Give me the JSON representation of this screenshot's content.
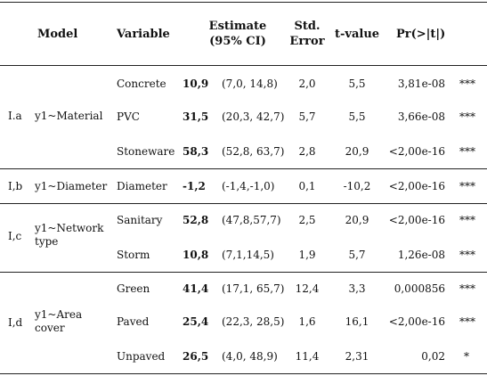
{
  "header": {
    "model": "Model",
    "variable": "Variable",
    "estimate_l1": "Estimate",
    "estimate_l2": "(95% CI)",
    "stderr_l1": "Std.",
    "stderr_l2": "Error",
    "tvalue": "t-value",
    "pr": "Pr(>|t|)"
  },
  "groups": [
    {
      "id": "I.a",
      "model": "y1~Material",
      "rows": [
        {
          "variable": "Concrete",
          "est": "10,9",
          "ci": "(7,0, 14,8)",
          "se": "2,0",
          "t": "5,5",
          "p": "3,81e-08",
          "sig": "***"
        },
        {
          "variable": "PVC",
          "est": "31,5",
          "ci": "(20,3, 42,7)",
          "se": "5,7",
          "t": "5,5",
          "p": "3,66e-08",
          "sig": "***"
        },
        {
          "variable": "Stoneware",
          "est": "58,3",
          "ci": "(52,8, 63,7)",
          "se": "2,8",
          "t": "20,9",
          "p": "<2,00e-16",
          "sig": "***"
        }
      ]
    },
    {
      "id": "I,b",
      "model": "y1~Diameter",
      "rows": [
        {
          "variable": "Diameter",
          "est": "-1,2",
          "ci": "(-1,4,-1,0)",
          "se": "0,1",
          "t": "-10,2",
          "p": "<2,00e-16",
          "sig": "***"
        }
      ]
    },
    {
      "id": "I,c",
      "model_l1": "y1~Network",
      "model_l2": "type",
      "rows": [
        {
          "variable": "Sanitary",
          "est": "52,8",
          "ci": "(47,8,57,7)",
          "se": "2,5",
          "t": "20,9",
          "p": "<2,00e-16",
          "sig": "***"
        },
        {
          "variable": "Storm",
          "est": "10,8",
          "ci": "(7,1,14,5)",
          "se": "1,9",
          "t": "5,7",
          "p": "1,26e-08",
          "sig": "***"
        }
      ]
    },
    {
      "id": "I,d",
      "model_l1": "y1~Area",
      "model_l2": "cover",
      "rows": [
        {
          "variable": "Green",
          "est": "41,4",
          "ci": "(17,1, 65,7)",
          "se": "12,4",
          "t": "3,3",
          "p": "0,000856",
          "sig": "***"
        },
        {
          "variable": "Paved",
          "est": "25,4",
          "ci": "(22,3, 28,5)",
          "se": "1,6",
          "t": "16,1",
          "p": "<2,00e-16",
          "sig": "***"
        },
        {
          "variable": "Unpaved",
          "est": "26,5",
          "ci": "(4,0, 48,9)",
          "se": "11,4",
          "t": "2,31",
          "p": "0,02",
          "sig": "*"
        }
      ]
    }
  ]
}
